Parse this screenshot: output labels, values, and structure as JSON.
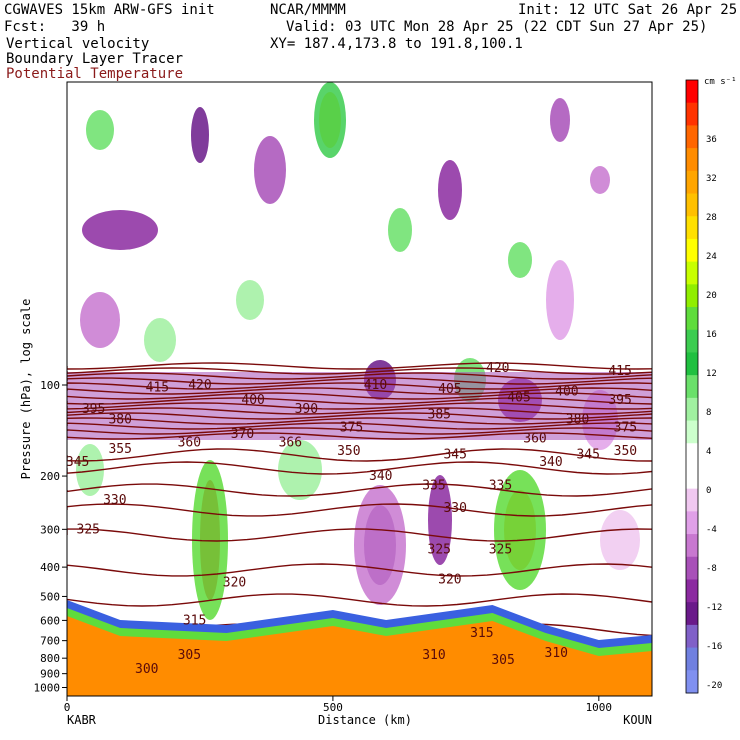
{
  "header": {
    "model": "CGWAVES 15km ARW-GFS init",
    "org": "NCAR/MMMM",
    "init": "Init: 12 UTC Sat 26 Apr 25",
    "fcst": "Fcst:   39 h",
    "valid": "Valid: 03 UTC Mon 28 Apr 25 (22 CDT Sun 27 Apr 25)",
    "xy": "XY= 187.4,173.8 to 191.8,100.1",
    "fields": [
      "Vertical velocity",
      "Boundary Layer Tracer",
      "Potential Temperature"
    ]
  },
  "colors": {
    "theta_line": "#7a0a0a",
    "terrain": "#ff8c00"
  },
  "chart_data": {
    "type": "heatmap",
    "xlabel": "Distance (km)",
    "ylabel": "Pressure (hPa), log scale",
    "xlim": [
      0,
      1100
    ],
    "x_ticks": [
      "0",
      "500",
      "1000"
    ],
    "y_ticks": [
      "100",
      "200",
      "300",
      "400",
      "500",
      "600",
      "700",
      "800",
      "900",
      "1000"
    ],
    "y_scale": "log",
    "endpoints": [
      "KABR",
      "KOUN"
    ],
    "colorbar": {
      "unit": "cm s⁻¹",
      "labels": [
        "36",
        "32",
        "28",
        "24",
        "20",
        "16",
        "12",
        "8",
        "4",
        "0",
        "-4",
        "-8",
        "-12",
        "-16",
        "-20"
      ],
      "colors": [
        "#ff0000",
        "#ff3300",
        "#ff6600",
        "#ff8c00",
        "#ffa500",
        "#ffc000",
        "#ffe000",
        "#ffff00",
        "#c8ff00",
        "#90ee00",
        "#5fdc3c",
        "#3ccc50",
        "#20c040",
        "#6ae06a",
        "#a0f0a0",
        "#ccffcc",
        "#ffffff",
        "#ffffff",
        "#f0c8f0",
        "#e0a0e8",
        "#c878d0",
        "#a850b8",
        "#8b2aa0",
        "#6a1a8a",
        "#8060c8",
        "#7080e0",
        "#8090f0"
      ]
    },
    "theta_contours": [
      {
        "label": "300",
        "x": 150,
        "p": 870
      },
      {
        "label": "305",
        "x": 230,
        "p": 780
      },
      {
        "label": "305",
        "x": 820,
        "p": 810
      },
      {
        "label": "310",
        "x": 690,
        "p": 780
      },
      {
        "label": "310",
        "x": 920,
        "p": 770
      },
      {
        "label": "315",
        "x": 240,
        "p": 600
      },
      {
        "label": "315",
        "x": 780,
        "p": 660
      },
      {
        "label": "320",
        "x": 315,
        "p": 450
      },
      {
        "label": "320",
        "x": 720,
        "p": 440
      },
      {
        "label": "325",
        "x": 40,
        "p": 300
      },
      {
        "label": "325",
        "x": 700,
        "p": 350
      },
      {
        "label": "325",
        "x": 815,
        "p": 350
      },
      {
        "label": "330",
        "x": 90,
        "p": 240
      },
      {
        "label": "330",
        "x": 730,
        "p": 255
      },
      {
        "label": "335",
        "x": 690,
        "p": 215
      },
      {
        "label": "335",
        "x": 815,
        "p": 215
      },
      {
        "label": "340",
        "x": 590,
        "p": 200
      },
      {
        "label": "340",
        "x": 910,
        "p": 180
      },
      {
        "label": "345",
        "x": 20,
        "p": 180
      },
      {
        "label": "345",
        "x": 730,
        "p": 170
      },
      {
        "label": "345",
        "x": 980,
        "p": 170
      },
      {
        "label": "350",
        "x": 530,
        "p": 165
      },
      {
        "label": "350",
        "x": 1050,
        "p": 165
      },
      {
        "label": "355",
        "x": 100,
        "p": 163
      },
      {
        "label": "360",
        "x": 230,
        "p": 155
      },
      {
        "label": "360",
        "x": 880,
        "p": 150
      },
      {
        "label": "366",
        "x": 420,
        "p": 155
      },
      {
        "label": "370",
        "x": 330,
        "p": 145
      },
      {
        "label": "375",
        "x": 535,
        "p": 138
      },
      {
        "label": "375",
        "x": 1050,
        "p": 138
      },
      {
        "label": "380",
        "x": 100,
        "p": 130
      },
      {
        "label": "380",
        "x": 960,
        "p": 130
      },
      {
        "label": "385",
        "x": 700,
        "p": 125
      },
      {
        "label": "390",
        "x": 450,
        "p": 120
      },
      {
        "label": "395",
        "x": 50,
        "p": 120
      },
      {
        "label": "395",
        "x": 1040,
        "p": 112
      },
      {
        "label": "400",
        "x": 350,
        "p": 112
      },
      {
        "label": "400",
        "x": 940,
        "p": 105
      },
      {
        "label": "405",
        "x": 720,
        "p": 103
      },
      {
        "label": "405",
        "x": 850,
        "p": 110
      },
      {
        "label": "410",
        "x": 580,
        "p": 100
      },
      {
        "label": "415",
        "x": 170,
        "p": 102
      },
      {
        "label": "415",
        "x": 1040,
        "p": 90
      },
      {
        "label": "420",
        "x": 250,
        "p": 100
      },
      {
        "label": "420",
        "x": 810,
        "p": 88
      }
    ]
  }
}
